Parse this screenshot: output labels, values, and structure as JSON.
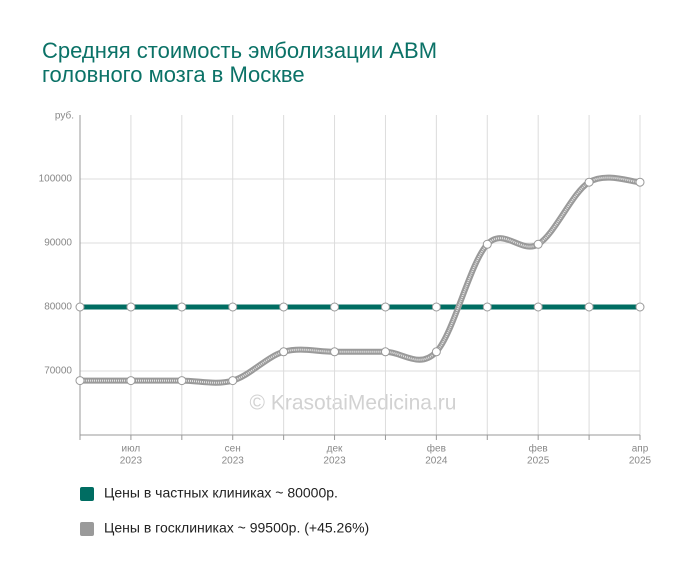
{
  "chart_data": {
    "type": "line",
    "title": [
      "Средняя стоимость эмболизации АВМ",
      "головного мозга в Москве"
    ],
    "y_label": "руб.",
    "watermark": "© KrasotaiMedicina.ru",
    "categories": [
      null,
      "июл",
      null,
      "сен",
      null,
      "дек",
      null,
      "фев",
      null,
      "фев",
      null,
      "апр"
    ],
    "category_years": [
      null,
      "2023",
      null,
      "2023",
      null,
      "2023",
      null,
      "2024",
      null,
      "2025",
      null,
      "2025"
    ],
    "series": [
      {
        "name": "Цены в частных клиниках ~ 80000р.",
        "color": "#006d62",
        "style": "straight",
        "values": [
          80000,
          80000,
          80000,
          80000,
          80000,
          80000,
          80000,
          80000,
          80000,
          80000,
          80000,
          80000
        ]
      },
      {
        "name": "Цены в госклиниках ~ 99500р. (+45.26%)",
        "color": "#9a9a9a",
        "style": "smooth",
        "values": [
          68500,
          68500,
          68500,
          68500,
          73000,
          73000,
          73000,
          73000,
          89800,
          89800,
          99500,
          99500
        ]
      }
    ],
    "ylim": [
      60000,
      110000
    ],
    "yticks": [
      70000,
      80000,
      90000,
      100000
    ],
    "grid": true
  }
}
